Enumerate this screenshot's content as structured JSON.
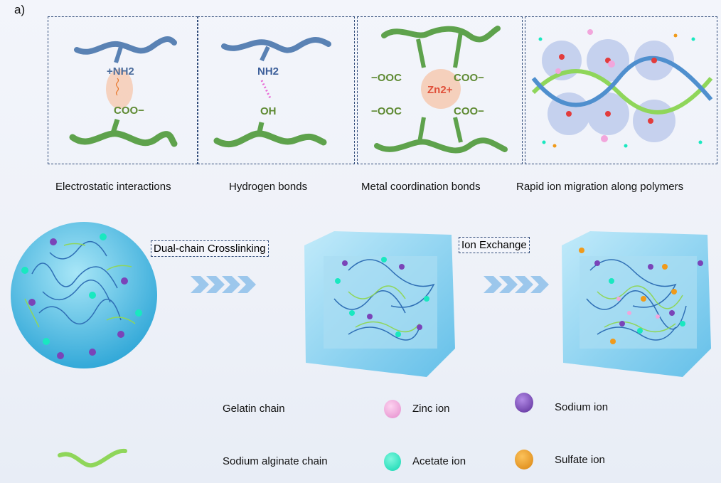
{
  "panel_label": "a)",
  "panels": [
    {
      "caption": "Electrostatic interactions",
      "top_group": "+NH2",
      "bottom_group": "COO−"
    },
    {
      "caption": "Hydrogen bonds",
      "top_group": "NH2",
      "bottom_group": "OH"
    },
    {
      "caption": "Metal coordination bonds",
      "ligand_left": "−OOC",
      "ligand_right": "COO−",
      "center_ion": "Zn2+"
    },
    {
      "caption": "Rapid ion migration along polymers"
    }
  ],
  "steps": [
    "Dual-chain Crosslinking",
    "Ion Exchange"
  ],
  "legend": [
    {
      "label": "Gelatin chain",
      "icon": "gelatin-chain-icon"
    },
    {
      "label": "Zinc ion",
      "color": "#f2a6dc"
    },
    {
      "label": "Sodium ion",
      "color": "#7a44b8"
    },
    {
      "label": "Sodium alginate chain",
      "color": "#8fd65a"
    },
    {
      "label": "Acetate ion",
      "color": "#19e8c0"
    },
    {
      "label": "Sulfate ion",
      "color": "#f09a1a"
    }
  ],
  "colors": {
    "gelatin": "#5a82b4",
    "alginate": "#5ea24c",
    "border": "#2f4a78",
    "hydrogel": "#7fd0ee"
  }
}
